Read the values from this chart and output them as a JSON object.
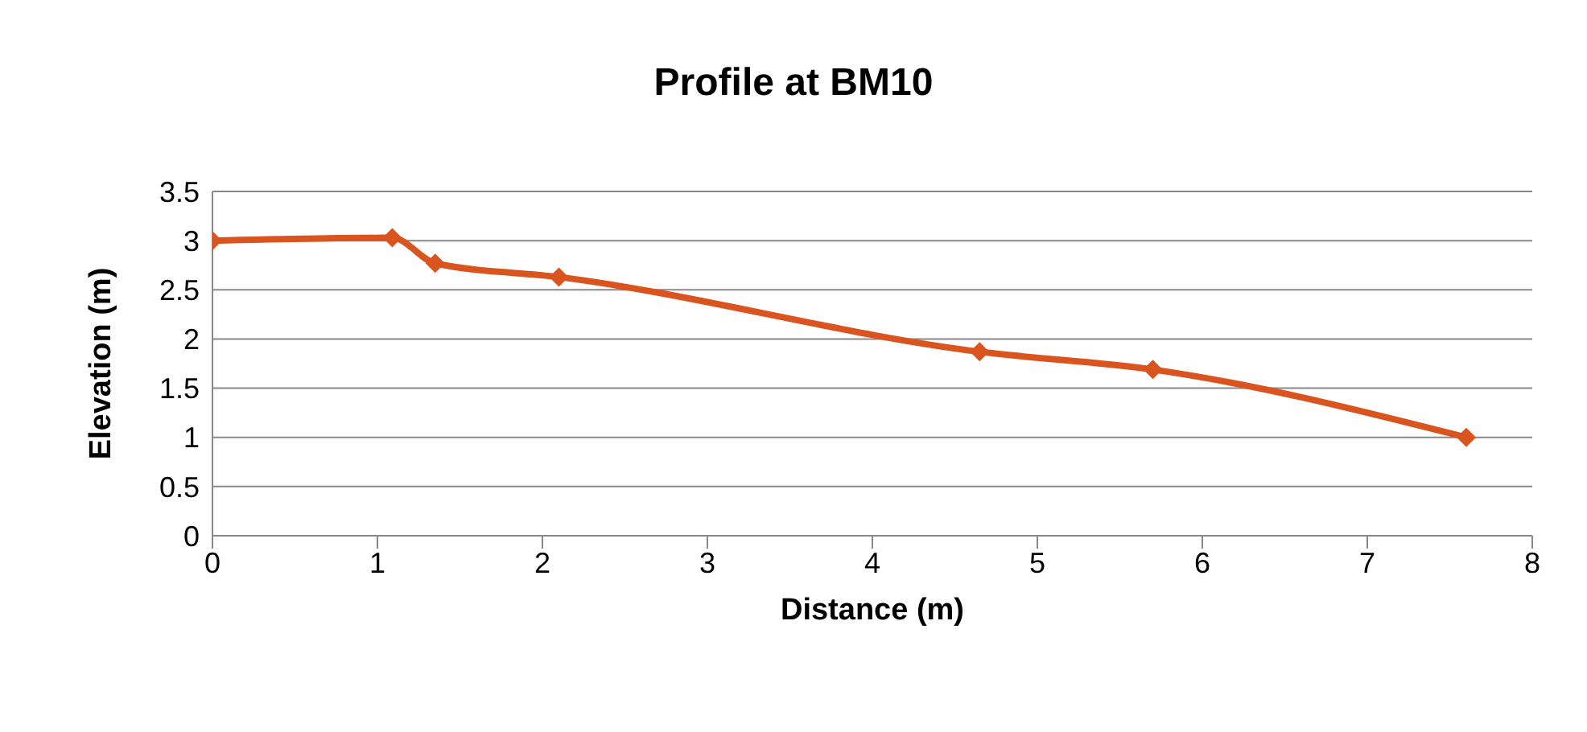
{
  "chart_data": {
    "type": "line",
    "title": "Profile at BM10",
    "xlabel": "Distance (m)",
    "ylabel": "Elevation (m)",
    "x": [
      0,
      1.09,
      1.35,
      2.1,
      4.65,
      5.7,
      7.6
    ],
    "series": [
      {
        "color": "#d9541e",
        "values": [
          3,
          3.03,
          2.77,
          2.63,
          1.87,
          1.69,
          1.0
        ]
      }
    ],
    "xlim": [
      0,
      8
    ],
    "xticks": [
      0,
      1,
      2,
      3,
      4,
      5,
      6,
      7,
      8
    ],
    "ylim": [
      0,
      3.5
    ],
    "yticks": [
      0,
      0.5,
      1,
      1.5,
      2,
      2.5,
      3,
      3.5
    ],
    "grid": "y",
    "legend": false,
    "marker": "diamond",
    "line_style": "solid"
  }
}
